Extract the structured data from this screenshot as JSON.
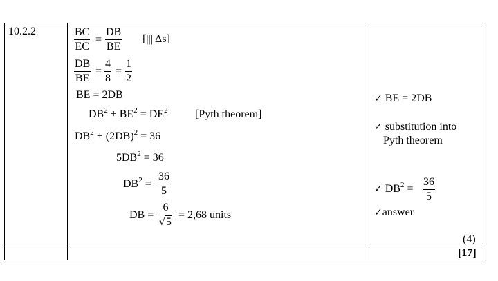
{
  "question": {
    "number": "10.2.2"
  },
  "solution": {
    "ratio1": {
      "num1": "BC",
      "den1": "EC",
      "eq": "=",
      "num2": "DB",
      "den2": "BE",
      "reason": "[||| Δs]"
    },
    "ratio2": {
      "num1": "DB",
      "den1": "BE",
      "eq1": "=",
      "num2": "4",
      "den2": "8",
      "eq2": "=",
      "num3": "1",
      "den3": "2"
    },
    "line_be": "BE = 2DB",
    "pyth": {
      "a": "DB",
      "plus": "+ BE",
      "eq": "= DE",
      "exp": "2",
      "reason": "[Pyth theorem]"
    },
    "subst": {
      "a": "DB",
      "b": " + (2DB)",
      "c": " = 36",
      "exp": "2"
    },
    "five": {
      "a": "5DB",
      "b": " = 36",
      "exp": "2"
    },
    "db2": {
      "lhs": "DB",
      "exp": "2",
      "eq": " =",
      "num": "36",
      "den": "5"
    },
    "db": {
      "lhs": "DB =",
      "num": "6",
      "den": "5",
      "result": "= 2,68 units"
    }
  },
  "marks": {
    "m1": "BE = 2DB",
    "m2_line1": "substitution into",
    "m2_line2": "Pyth theorem",
    "m3": {
      "lhs": "DB",
      "exp": "2",
      "eq": " =",
      "num": "36",
      "den": "5"
    },
    "m4": "answer",
    "check": "✓",
    "subtotal": "(4)",
    "total": "[17]"
  }
}
